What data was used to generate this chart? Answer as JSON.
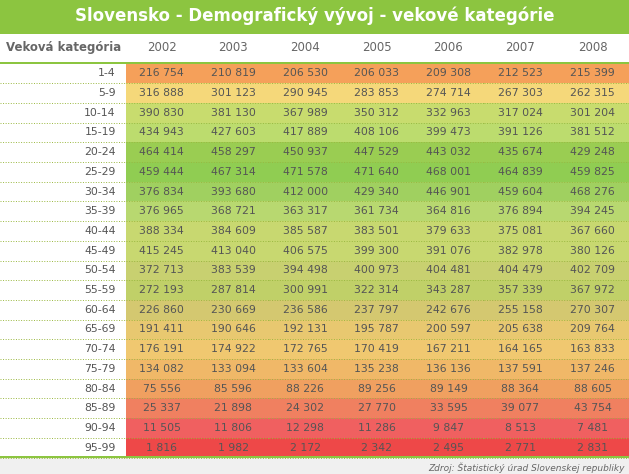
{
  "title": "Slovensko - Demografický vývoj - vekové kategórie",
  "source": "Zdroj: Štatistický úrad Slovenskej republiky",
  "columns": [
    "Veková kategória",
    "2002",
    "2003",
    "2004",
    "2005",
    "2006",
    "2007",
    "2008"
  ],
  "rows": [
    [
      "1-4",
      "216 754",
      "210 819",
      "206 530",
      "206 033",
      "209 308",
      "212 523",
      "215 399"
    ],
    [
      "5-9",
      "316 888",
      "301 123",
      "290 945",
      "283 853",
      "274 714",
      "267 303",
      "262 315"
    ],
    [
      "10-14",
      "390 830",
      "381 130",
      "367 989",
      "350 312",
      "332 963",
      "317 024",
      "301 204"
    ],
    [
      "15-19",
      "434 943",
      "427 603",
      "417 889",
      "408 106",
      "399 473",
      "391 126",
      "381 512"
    ],
    [
      "20-24",
      "464 414",
      "458 297",
      "450 937",
      "447 529",
      "443 032",
      "435 674",
      "429 248"
    ],
    [
      "25-29",
      "459 444",
      "467 314",
      "471 578",
      "471 640",
      "468 001",
      "464 839",
      "459 825"
    ],
    [
      "30-34",
      "376 834",
      "393 680",
      "412 000",
      "429 340",
      "446 901",
      "459 604",
      "468 276"
    ],
    [
      "35-39",
      "376 965",
      "368 721",
      "363 317",
      "361 734",
      "364 816",
      "376 894",
      "394 245"
    ],
    [
      "40-44",
      "388 334",
      "384 609",
      "385 587",
      "383 501",
      "379 633",
      "375 081",
      "367 660"
    ],
    [
      "45-49",
      "415 245",
      "413 040",
      "406 575",
      "399 300",
      "391 076",
      "382 978",
      "380 126"
    ],
    [
      "50-54",
      "372 713",
      "383 539",
      "394 498",
      "400 973",
      "404 481",
      "404 479",
      "402 709"
    ],
    [
      "55-59",
      "272 193",
      "287 814",
      "300 991",
      "322 314",
      "343 287",
      "357 339",
      "367 972"
    ],
    [
      "60-64",
      "226 860",
      "230 669",
      "236 586",
      "237 797",
      "242 676",
      "255 158",
      "270 307"
    ],
    [
      "65-69",
      "191 411",
      "190 646",
      "192 131",
      "195 787",
      "200 597",
      "205 638",
      "209 764"
    ],
    [
      "70-74",
      "176 191",
      "174 922",
      "172 765",
      "170 419",
      "167 211",
      "164 165",
      "163 833"
    ],
    [
      "75-79",
      "134 082",
      "133 094",
      "133 604",
      "135 238",
      "136 136",
      "137 591",
      "137 246"
    ],
    [
      "80-84",
      "75 556",
      "85 596",
      "88 226",
      "89 256",
      "89 149",
      "88 364",
      "88 605"
    ],
    [
      "85-89",
      "25 337",
      "21 898",
      "24 302",
      "27 770",
      "33 595",
      "39 077",
      "43 754"
    ],
    [
      "90-94",
      "11 505",
      "11 806",
      "12 298",
      "11 286",
      "9 847",
      "8 513",
      "7 481"
    ],
    [
      "95-99",
      "1 816",
      "1 982",
      "2 172",
      "2 342",
      "2 495",
      "2 771",
      "2 831"
    ]
  ],
  "row_colors": [
    "#F5A05A",
    "#F5D87A",
    "#C8DC6E",
    "#BCDC6E",
    "#9ACD52",
    "#90CD52",
    "#A0D060",
    "#B8D870",
    "#C8D870",
    "#C8D870",
    "#C8D070",
    "#C0D068",
    "#D4C870",
    "#E8C870",
    "#F0C870",
    "#F0B868",
    "#F0A060",
    "#F08060",
    "#F06060",
    "#EE4848"
  ],
  "title_bg": "#8CC540",
  "header_bg": "#ffffff",
  "border_color": "#8CC540",
  "dotted_color": "#9AB840",
  "header_text_color": "#ffffff",
  "data_text_color": "#555555",
  "col_header_text_color": "#666666",
  "title_fontsize": 12,
  "header_fontsize": 8.5,
  "data_fontsize": 7.8,
  "source_fontsize": 6.5
}
